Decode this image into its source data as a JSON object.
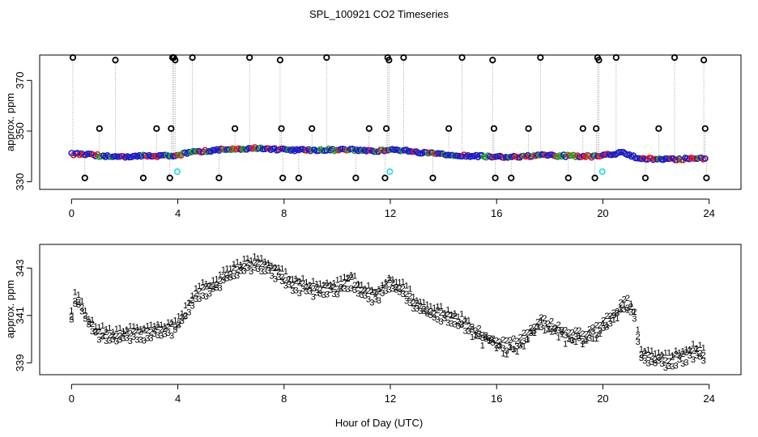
{
  "page": {
    "title": "SPL_100921  CO2 Timeseries",
    "xlabel": "Hour of Day (UTC)"
  },
  "colors": {
    "series1": "#e41a1c",
    "series2": "#2ca02c",
    "series3": "#1f1fbf",
    "cyan": "#33dddd",
    "outline": "#000000",
    "spike": "#9a9a9a"
  },
  "chart_data": [
    {
      "type": "scatter",
      "title": "SPL_100921  CO2 Timeseries",
      "ylabel": "approx. ppm",
      "xlabel": "",
      "xlim": [
        -1.2,
        25.2
      ],
      "ylim": [
        327,
        380
      ],
      "xticks": [
        0,
        4,
        8,
        12,
        16,
        20,
        24
      ],
      "yticks": [
        330,
        350,
        370
      ],
      "baseline_knots": [
        [
          0,
          341
        ],
        [
          0.5,
          340.8
        ],
        [
          1.5,
          339.8
        ],
        [
          3,
          340.2
        ],
        [
          3.9,
          340.4
        ],
        [
          4.5,
          341.6
        ],
        [
          5.5,
          342.5
        ],
        [
          7,
          343.2
        ],
        [
          8,
          342.6
        ],
        [
          10.5,
          342.6
        ],
        [
          11.5,
          342.2
        ],
        [
          12.2,
          342.9
        ],
        [
          13,
          341.5
        ],
        [
          14,
          340.8
        ],
        [
          15.8,
          339.8
        ],
        [
          16.8,
          339.8
        ],
        [
          17.6,
          340.4
        ],
        [
          18.5,
          340.2
        ],
        [
          19.8,
          340.0
        ],
        [
          20.8,
          341.6
        ],
        [
          21.3,
          339.4
        ],
        [
          22.2,
          338.8
        ],
        [
          23.8,
          339.2
        ]
      ],
      "spike_high": [
        0.05,
        1.65,
        3.8,
        3.85,
        3.9,
        4.55,
        6.7,
        7.85,
        9.6,
        11.9,
        11.95,
        12.5,
        14.7,
        15.85,
        17.65,
        19.8,
        19.85,
        20.5,
        22.7,
        23.8
      ],
      "spike_mid": [
        1.05,
        3.2,
        3.75,
        6.15,
        7.9,
        9.05,
        11.2,
        11.85,
        14.2,
        15.9,
        17.2,
        19.25,
        19.75,
        22.1,
        23.85
      ],
      "spike_low": [
        0.5,
        2.7,
        3.7,
        5.55,
        7.95,
        8.55,
        10.7,
        11.8,
        13.6,
        15.95,
        16.55,
        18.7,
        19.7,
        21.6,
        23.9
      ],
      "spike_values": {
        "high": 379,
        "high_alt": 378,
        "mid": 351,
        "low": 331.5
      },
      "cyan_points": [
        [
          3.98,
          334
        ],
        [
          11.98,
          334
        ],
        [
          19.98,
          334
        ]
      ]
    },
    {
      "type": "scatter",
      "title": "",
      "ylabel": "approx. ppm",
      "xlabel": "Hour of Day (UTC)",
      "xlim": [
        -1.2,
        25.2
      ],
      "ylim": [
        338.5,
        344.0
      ],
      "xticks": [
        0,
        4,
        8,
        12,
        16,
        20,
        24
      ],
      "yticks": [
        339,
        341,
        343
      ],
      "series": [
        {
          "name": "1",
          "offset": 0.45
        },
        {
          "name": "2",
          "offset": 0.25
        },
        {
          "name": "3",
          "offset": 0.0
        }
      ],
      "knots": [
        [
          0.0,
          340.8
        ],
        [
          0.15,
          341.6
        ],
        [
          0.35,
          341.2
        ],
        [
          0.6,
          340.6
        ],
        [
          1.0,
          340.1
        ],
        [
          1.6,
          339.9
        ],
        [
          2.2,
          340.0
        ],
        [
          3.0,
          340.1
        ],
        [
          3.9,
          340.3
        ],
        [
          4.3,
          340.9
        ],
        [
          4.7,
          341.8
        ],
        [
          5.2,
          341.9
        ],
        [
          5.7,
          342.4
        ],
        [
          6.3,
          342.8
        ],
        [
          7.0,
          343.0
        ],
        [
          7.6,
          342.7
        ],
        [
          8.2,
          342.2
        ],
        [
          9.0,
          341.9
        ],
        [
          10.0,
          342.0
        ],
        [
          10.5,
          342.3
        ],
        [
          11.0,
          341.8
        ],
        [
          11.5,
          341.6
        ],
        [
          12.0,
          342.2
        ],
        [
          12.5,
          341.9
        ],
        [
          13.0,
          341.2
        ],
        [
          14.0,
          340.8
        ],
        [
          15.0,
          340.4
        ],
        [
          16.0,
          339.7
        ],
        [
          16.5,
          339.6
        ],
        [
          17.0,
          339.9
        ],
        [
          17.6,
          340.6
        ],
        [
          18.0,
          340.5
        ],
        [
          18.6,
          340.1
        ],
        [
          19.2,
          340.0
        ],
        [
          19.8,
          340.3
        ],
        [
          20.5,
          341.0
        ],
        [
          20.9,
          341.5
        ],
        [
          21.2,
          340.8
        ],
        [
          21.4,
          339.2
        ],
        [
          22.0,
          339.0
        ],
        [
          22.5,
          338.9
        ],
        [
          23.0,
          339.1
        ],
        [
          23.5,
          339.3
        ],
        [
          23.85,
          339.1
        ]
      ]
    }
  ]
}
